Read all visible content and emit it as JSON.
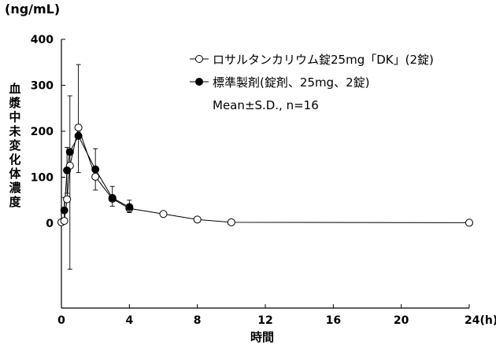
{
  "chart_data": {
    "type": "line",
    "unit_label": "(ng/mL)",
    "ylabel": "血漿中未変化体濃度",
    "xlabel": "時間",
    "xlim": [
      0,
      24
    ],
    "ylim": [
      0,
      400
    ],
    "x_ticks": [
      "0",
      "4",
      "8",
      "12",
      "16",
      "20",
      "24(h)"
    ],
    "y_ticks": [
      "0",
      "100",
      "200",
      "300",
      "400"
    ],
    "series": [
      {
        "name": "ロサルタンカリウム錠25mg「DK」(2錠)",
        "marker": "open-circle",
        "x": [
          0,
          0.17,
          0.33,
          0.5,
          1,
          2,
          3,
          4,
          6,
          8,
          10,
          24
        ],
        "y": [
          2,
          5,
          52,
          125,
          208,
          101,
          53,
          32,
          20,
          8,
          2,
          1
        ]
      },
      {
        "name": "標準製剤(錠剤、25mg、2錠)",
        "marker": "filled-circle",
        "x": [
          0.17,
          0.33,
          0.5,
          1,
          2,
          3,
          4
        ],
        "y": [
          28,
          115,
          155,
          190,
          117,
          55,
          35
        ],
        "err_upper": [
          28,
          50,
          122,
          155,
          45,
          25,
          15
        ],
        "err_lower": [
          28,
          50,
          255,
          80,
          45,
          18,
          12
        ]
      }
    ],
    "legend_note": "Mean±S.D., n=16",
    "legend_position": "top-right",
    "grid": false
  }
}
